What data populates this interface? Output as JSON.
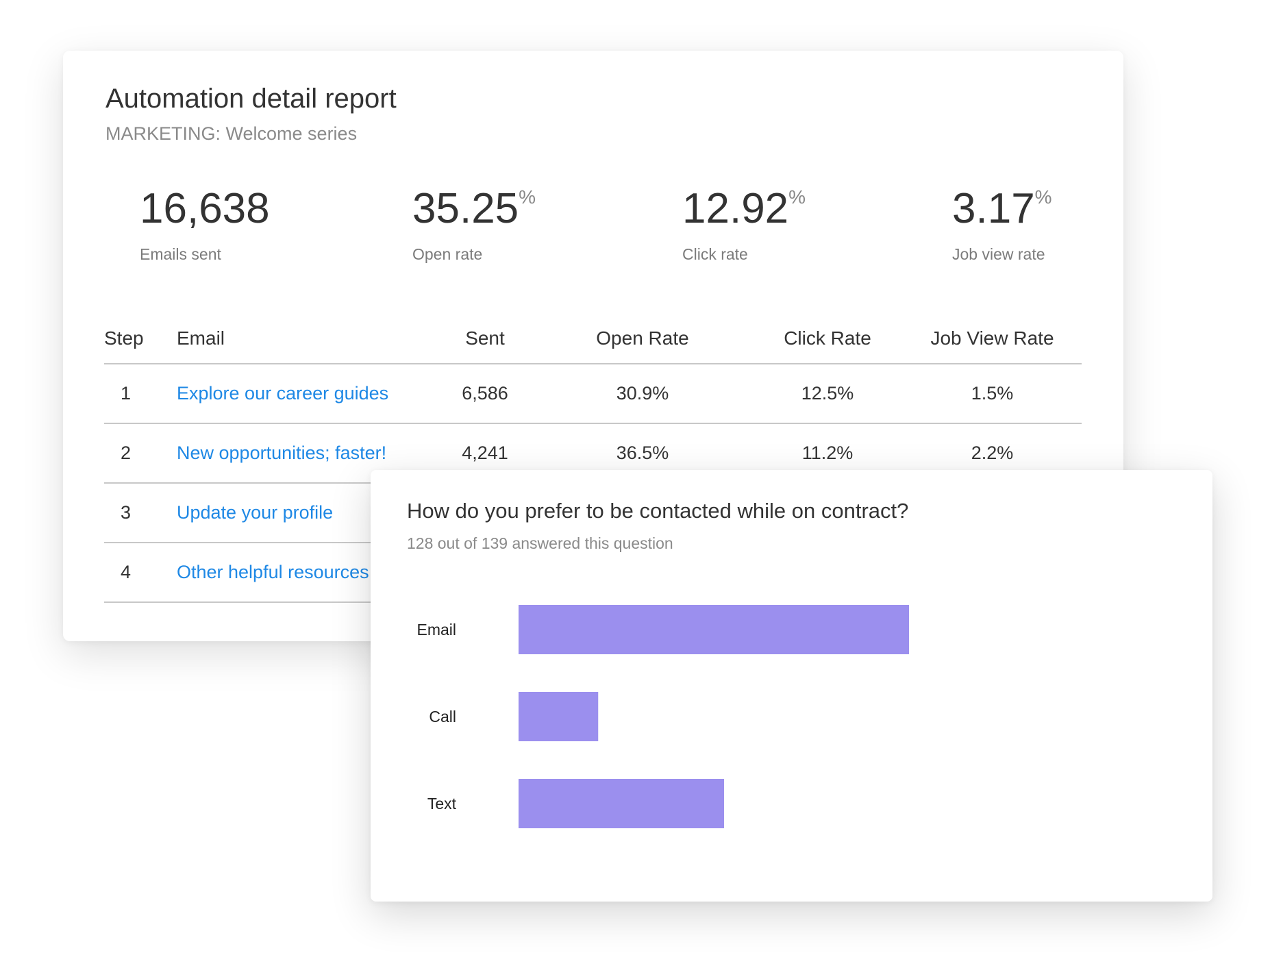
{
  "report": {
    "title": "Automation detail report",
    "subtitle": "MARKETING: Welcome series",
    "stats": [
      {
        "value": "16,638",
        "suffix": "",
        "label": "Emails sent"
      },
      {
        "value": "35.25",
        "suffix": "%",
        "label": "Open rate"
      },
      {
        "value": "12.92",
        "suffix": "%",
        "label": "Click rate"
      },
      {
        "value": "3.17",
        "suffix": "%",
        "label": "Job view rate"
      }
    ],
    "table": {
      "headers": [
        "Step",
        "Email",
        "Sent",
        "Open Rate",
        "Click Rate",
        "Job View Rate"
      ],
      "rows": [
        {
          "step": "1",
          "email": "Explore our career guides",
          "sent": "6,586",
          "open": "30.9%",
          "click": "12.5%",
          "job": "1.5%"
        },
        {
          "step": "2",
          "email": "New opportunities; faster!",
          "sent": "4,241",
          "open": "36.5%",
          "click": "11.2%",
          "job": "2.2%"
        },
        {
          "step": "3",
          "email": "Update your profile",
          "sent": "",
          "open": "",
          "click": "",
          "job": ""
        },
        {
          "step": "4",
          "email": "Other helpful resources",
          "sent": "",
          "open": "",
          "click": "",
          "job": ""
        }
      ]
    }
  },
  "survey": {
    "question": "How do you prefer to be contacted while on contract?",
    "answered": "128 out of 139 answered this question"
  },
  "chart_data": {
    "type": "bar",
    "orientation": "horizontal",
    "categories": [
      "Email",
      "Call",
      "Text"
    ],
    "values": [
      76,
      15.5,
      40
    ],
    "xlim": [
      0,
      100
    ],
    "bar_color": "#9b8fee",
    "grid": false,
    "title": "",
    "xlabel": "",
    "ylabel": ""
  },
  "colors": {
    "link": "#1e88e5",
    "bar": "#9b8fee",
    "rule": "#c8c8c8"
  }
}
